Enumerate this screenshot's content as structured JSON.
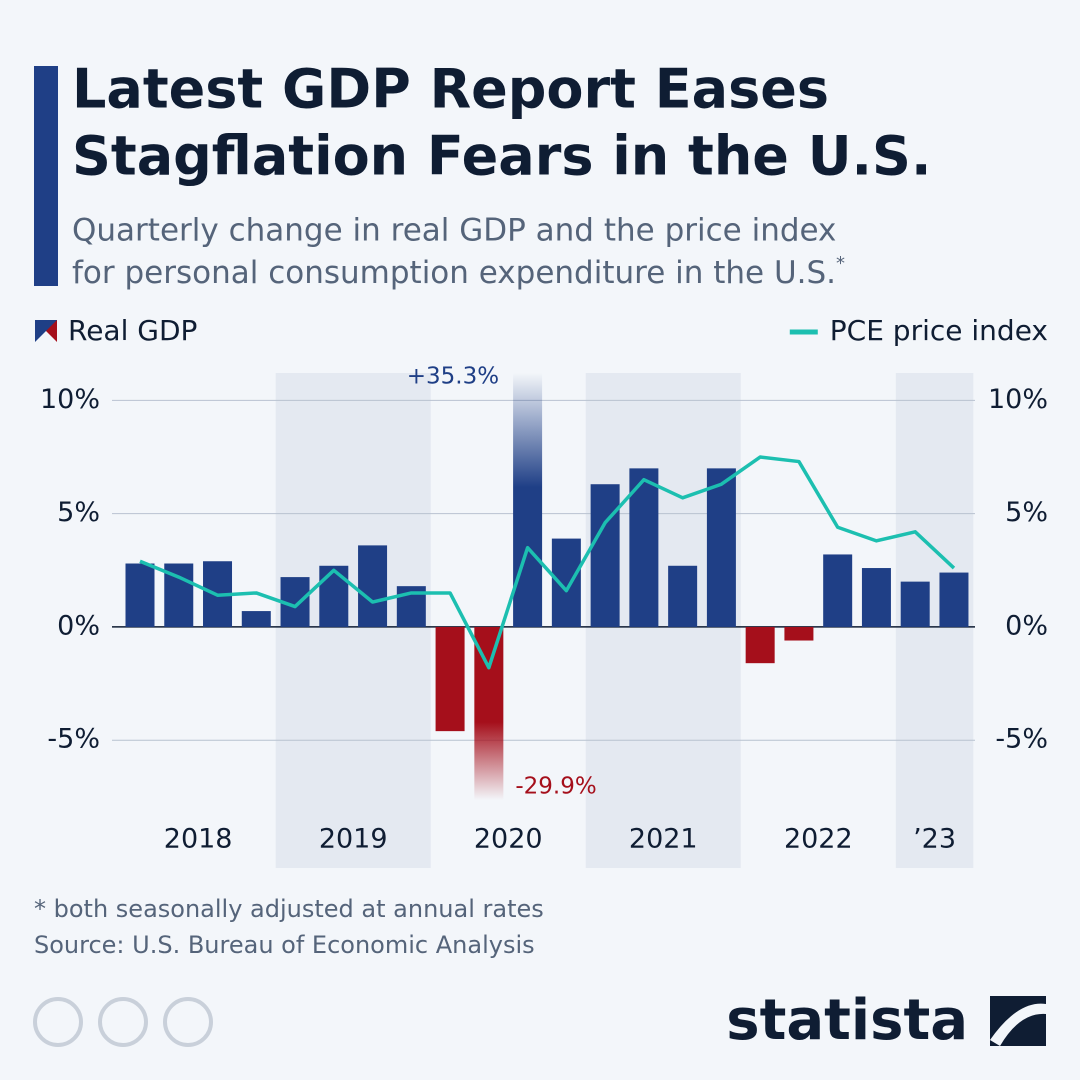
{
  "chart_data": {
    "type": "bar_line",
    "title": [
      "Latest GDP Report Eases",
      "Stagflation Fears in the U.S."
    ],
    "subtitle": [
      "Quarterly change in real GDP and the price index",
      "for personal consumption expenditure in the U.S."
    ],
    "subtitle_mark": "*",
    "years": [
      "2018",
      "2019",
      "2020",
      "2021",
      "2022",
      "’23"
    ],
    "series": [
      {
        "name": "Real GDP",
        "type": "bar",
        "color": "#1f3f86",
        "negative_color": "#a50f1b",
        "values": [
          2.8,
          2.8,
          2.9,
          0.7,
          2.2,
          2.7,
          3.6,
          1.8,
          -4.6,
          -29.9,
          35.3,
          3.9,
          6.3,
          7.0,
          2.7,
          7.0,
          -1.6,
          -0.6,
          3.2,
          2.6,
          2.0,
          2.4
        ],
        "value_labels": [
          null,
          null,
          null,
          null,
          null,
          null,
          null,
          null,
          null,
          "-29.9%",
          "+35.3%",
          null,
          null,
          null,
          null,
          null,
          null,
          null,
          null,
          null,
          null,
          null
        ]
      },
      {
        "name": "PCE price index",
        "type": "line",
        "color": "#1cbfb0",
        "axis": "y2",
        "values": [
          2.9,
          2.2,
          1.4,
          1.5,
          0.9,
          2.5,
          1.1,
          1.5,
          1.5,
          -1.8,
          3.5,
          1.6,
          4.6,
          6.5,
          5.7,
          6.3,
          7.5,
          7.3,
          4.4,
          3.8,
          4.2,
          2.6
        ]
      }
    ],
    "ylim": [
      -7.64,
      11.21
    ],
    "yticks": [
      {
        "value": -5,
        "label": "-5%"
      },
      {
        "value": 0,
        "label": "0%"
      },
      {
        "value": 5,
        "label": "5%"
      },
      {
        "value": 10,
        "label": "10%"
      }
    ],
    "y2lim": [
      -7.64,
      11.21
    ],
    "y2ticks": [
      {
        "value": -5,
        "label": "-5%"
      },
      {
        "value": 0,
        "label": "0%"
      },
      {
        "value": 5,
        "label": "5%"
      },
      {
        "value": 10,
        "label": "10%"
      }
    ],
    "grid": true,
    "footnote": "* both seasonally adjusted at annual rates",
    "source": "Source: U.S. Bureau of Economic Analysis",
    "brand": "statista"
  }
}
